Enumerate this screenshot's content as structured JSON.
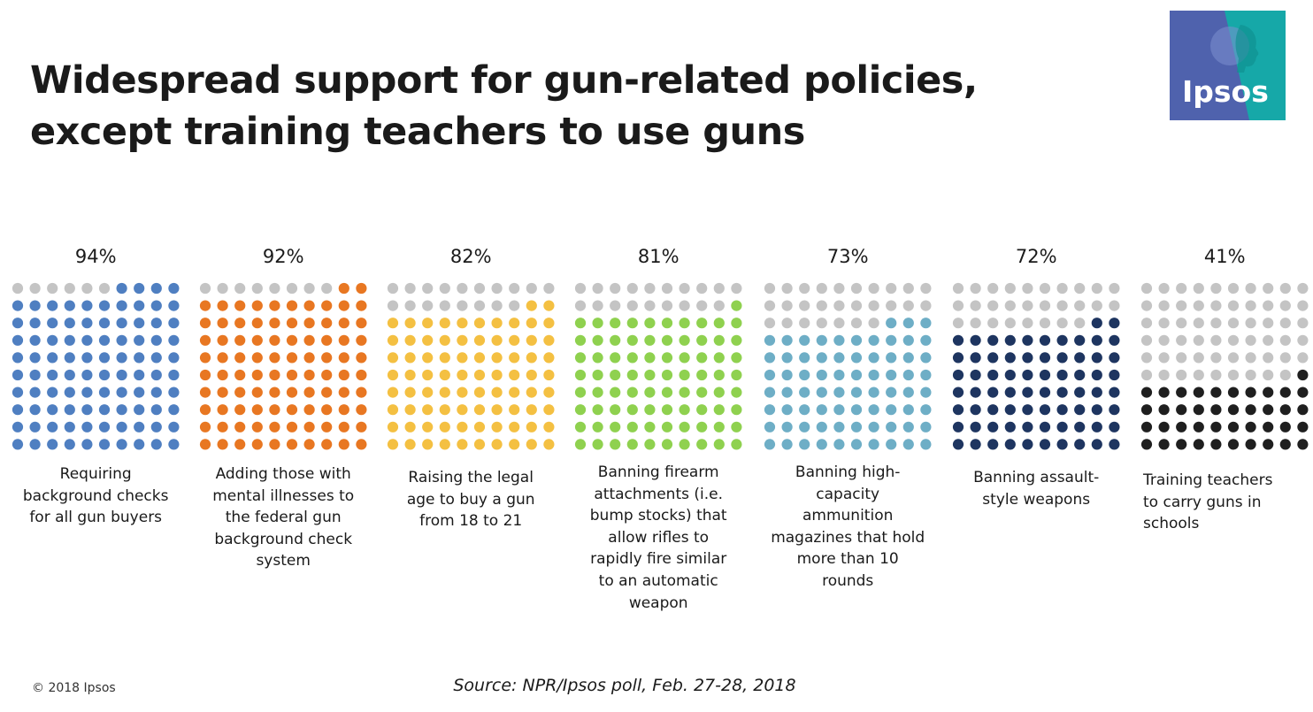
{
  "title": "Widespread support for gun-related policies, except training teachers to use guns",
  "logo": {
    "text": "Ipsos",
    "colors": {
      "left": "#4f62ad",
      "right": "#16a8a8"
    }
  },
  "chart_data": {
    "type": "waffle",
    "grid": {
      "rows": 10,
      "cols": 10
    },
    "inactive_color": "#c4c4c4",
    "series": [
      {
        "label": "Requiring background checks for all gun buyers",
        "value": 94,
        "value_label": "94%",
        "color": "#4f7fc1"
      },
      {
        "label": "Adding those with mental illnesses to the federal gun background check system",
        "value": 92,
        "value_label": "92%",
        "color": "#e87722"
      },
      {
        "label": "Raising the legal age to buy a gun from 18 to 21",
        "value": 82,
        "value_label": "82%",
        "color": "#f4c042"
      },
      {
        "label": "Banning firearm attachments (i.e. bump stocks) that allow rifles to rapidly fire similar to an automatic weapon",
        "value": 81,
        "value_label": "81%",
        "color": "#8fd14f"
      },
      {
        "label": "Banning high-capacity ammunition magazines that hold more than 10 rounds",
        "value": 73,
        "value_label": "73%",
        "color": "#6eaec6"
      },
      {
        "label": "Banning assault-style weapons",
        "value": 72,
        "value_label": "72%",
        "color": "#1e3560"
      },
      {
        "label": "Training teachers to carry guns in schools",
        "value": 41,
        "value_label": "41%",
        "color": "#1f1f1f"
      }
    ]
  },
  "footer": {
    "copyright": "© 2018 Ipsos",
    "source": "Source: NPR/Ipsos poll, Feb. 27-28, 2018"
  }
}
